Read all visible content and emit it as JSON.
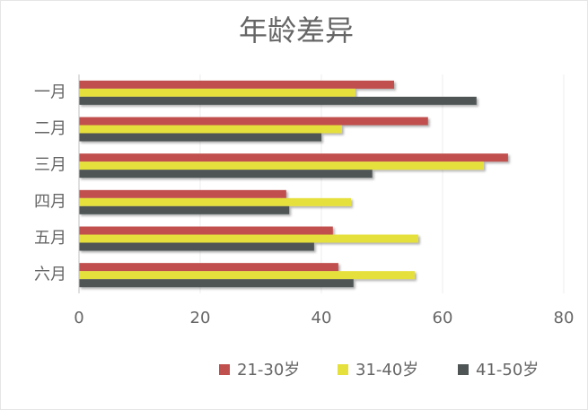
{
  "chart_data": {
    "type": "bar",
    "orientation": "horizontal",
    "title": "年龄差异",
    "categories": [
      "一月",
      "二月",
      "三月",
      "四月",
      "五月",
      "六月"
    ],
    "series": [
      {
        "name": "21-30岁",
        "color": "#c0504d",
        "values": [
          52,
          57.6,
          70.8,
          34.2,
          41.9,
          42.8
        ]
      },
      {
        "name": "31-40岁",
        "color": "#e6e03c",
        "values": [
          45.6,
          43.4,
          66.8,
          44.9,
          56,
          55.4
        ]
      },
      {
        "name": "41-50岁",
        "color": "#4f5555",
        "values": [
          65.6,
          40,
          48.4,
          34.7,
          38.8,
          45.3
        ]
      }
    ],
    "xlim": [
      0,
      80
    ],
    "xticks": [
      0,
      20,
      40,
      60,
      80
    ],
    "grid": true,
    "legend": "bottom"
  }
}
